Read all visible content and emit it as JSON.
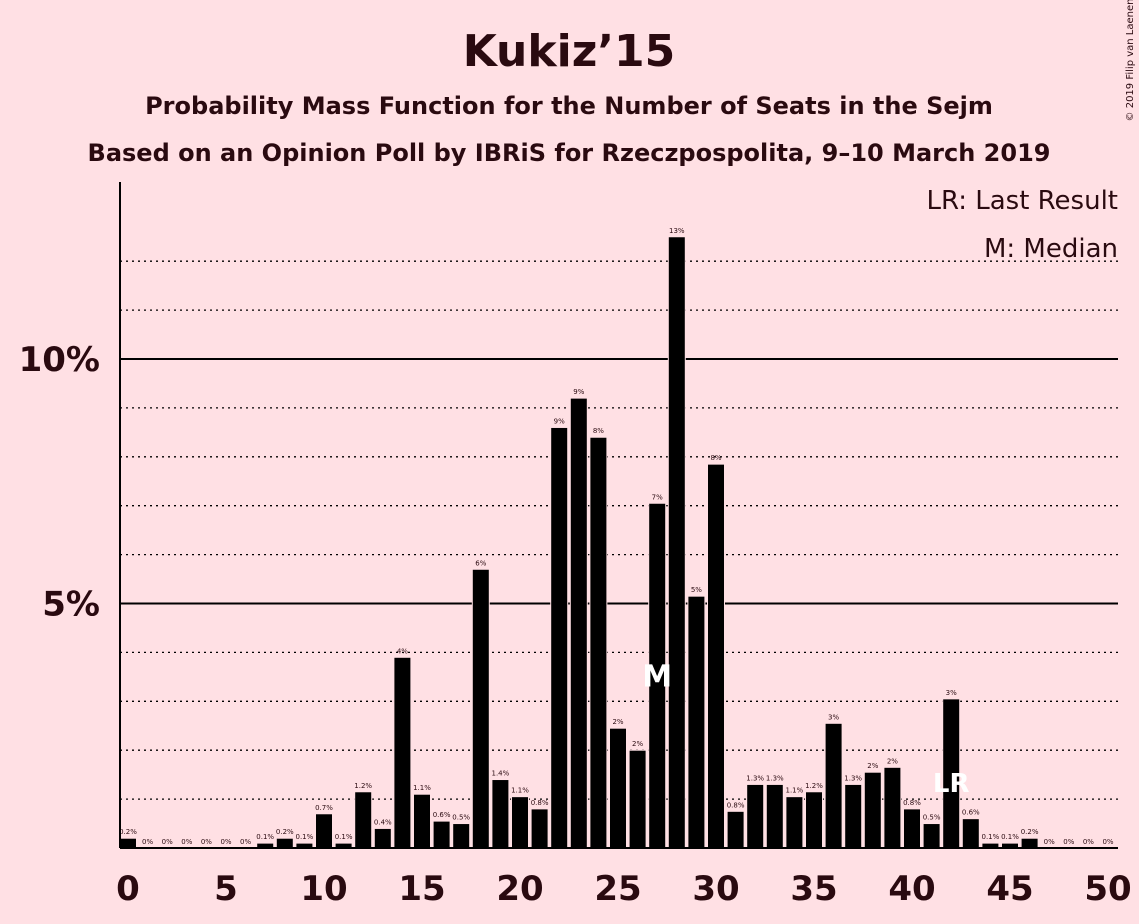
{
  "copyright": "© 2019 Filip van Laenen",
  "legend": {
    "lr": "LR: Last Result",
    "median": "M: Median"
  },
  "markers": {
    "median_label": "M",
    "lr_label": "LR"
  },
  "colors": {
    "background": "#FFE0E4",
    "bar": "#000000",
    "text": "#2a0a10"
  },
  "chart_data": {
    "type": "bar",
    "title": "Kukiz’15",
    "subtitle": "Probability Mass Function for the Number of Seats in the Sejm",
    "subtitle2": "Based on an Opinion Poll by IBRiS for Rzeczpospolita, 9–10 March 2019",
    "x": [
      0,
      1,
      2,
      3,
      4,
      5,
      6,
      7,
      8,
      9,
      10,
      11,
      12,
      13,
      14,
      15,
      16,
      17,
      18,
      19,
      20,
      21,
      22,
      23,
      24,
      25,
      26,
      27,
      28,
      29,
      30,
      31,
      32,
      33,
      34,
      35,
      36,
      37,
      38,
      39,
      40,
      41,
      42,
      43,
      44,
      45,
      46,
      47,
      48,
      49,
      50
    ],
    "values": [
      0.2,
      0,
      0,
      0,
      0,
      0,
      0,
      0.1,
      0.2,
      0.1,
      0.7,
      0.1,
      1.15,
      0.4,
      3.9,
      1.1,
      0.55,
      0.5,
      5.7,
      1.4,
      1.05,
      0.8,
      8.6,
      9.2,
      8.4,
      2.45,
      2.0,
      7.05,
      12.5,
      5.15,
      7.85,
      0.75,
      1.3,
      1.3,
      1.05,
      1.15,
      2.55,
      1.3,
      1.55,
      1.65,
      0.8,
      0.5,
      3.05,
      0.6,
      0.1,
      0.1,
      0.2,
      0,
      0,
      0,
      0
    ],
    "labels": [
      "0.2%",
      "0%",
      "0%",
      "0%",
      "0%",
      "0%",
      "0%",
      "0.1%",
      "0.2%",
      "0.1%",
      "0.7%",
      "0.1%",
      "1.2%",
      "0.4%",
      "4%",
      "1.1%",
      "0.6%",
      "0.5%",
      "6%",
      "1.4%",
      "1.1%",
      "0.8%",
      "9%",
      "9%",
      "8%",
      "2%",
      "2%",
      "7%",
      "13%",
      "5%",
      "8%",
      "0.8%",
      "1.3%",
      "1.3%",
      "1.1%",
      "1.2%",
      "3%",
      "1.3%",
      "2%",
      "2%",
      "0.8%",
      "0.5%",
      "3%",
      "0.6%",
      "0.1%",
      "0.1%",
      "0.2%",
      "0%",
      "0%",
      "0%",
      "0%"
    ],
    "x_ticks": [
      0,
      5,
      10,
      15,
      20,
      25,
      30,
      35,
      40,
      45,
      50
    ],
    "y_ticks": [
      {
        "value": 5,
        "label": "5%"
      },
      {
        "value": 10,
        "label": "10%"
      }
    ],
    "ylim": [
      0,
      13.5
    ],
    "median": 27,
    "last_result": 42,
    "grid": "dotted at every 1%, solid at 5% and 10%",
    "legend_position": "top-right"
  }
}
